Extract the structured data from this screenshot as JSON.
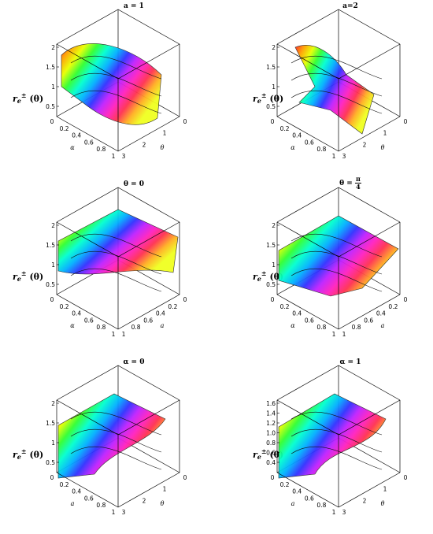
{
  "panels": [
    {
      "title": "a = 1",
      "zlabel": "r",
      "zticks": [
        "2",
        "1.5",
        "1",
        "0.5"
      ],
      "xticks": [
        "0",
        "0.2",
        "0.4",
        "0.6",
        "0.8",
        "1"
      ],
      "xname": "α",
      "yticks": [
        "0",
        "1",
        "2",
        "3"
      ],
      "yname": "θ"
    },
    {
      "title": "a=2",
      "zlabel": "r",
      "zticks": [
        "2",
        "1.5",
        "1",
        "0.5"
      ],
      "xticks": [
        "0",
        "0.2",
        "0.4",
        "0.6",
        "0.8",
        "1"
      ],
      "xname": "α",
      "yticks": [
        "0",
        "1",
        "2",
        "3"
      ],
      "yname": "θ"
    },
    {
      "title": "θ = 0",
      "zlabel": "r",
      "zticks": [
        "2",
        "1.5",
        "1",
        "0.5"
      ],
      "xticks": [
        "0",
        "0.2",
        "0.4",
        "0.6",
        "0.8",
        "1"
      ],
      "xname": "α",
      "yticks": [
        "0",
        "0.2",
        "0.4",
        "0.6",
        "0.8",
        "1"
      ],
      "yname": "a"
    },
    {
      "title_prefix": "θ =",
      "title_num": "π",
      "title_den": "4",
      "zlabel": "r",
      "zticks": [
        "2",
        "1.5",
        "1",
        "0.5"
      ],
      "xticks": [
        "0",
        "0.2",
        "0.4",
        "0.6",
        "0.8",
        "1"
      ],
      "xname": "α",
      "yticks": [
        "0",
        "0.2",
        "0.4",
        "0.6",
        "0.8",
        "1"
      ],
      "yname": "a"
    },
    {
      "title": "α = 0",
      "zlabel": "r",
      "zticks": [
        "2",
        "1.5",
        "1",
        "0.5"
      ],
      "xticks": [
        "0",
        "0.2",
        "0.4",
        "0.6",
        "0.8",
        "1"
      ],
      "xname": "a",
      "yticks": [
        "0",
        "1",
        "2",
        "3"
      ],
      "yname": "θ"
    },
    {
      "title": "α = 1",
      "zlabel": "r",
      "zticks": [
        "1.6",
        "1.4",
        "1.2",
        "1.0",
        "0.8",
        "0.6",
        "0.4"
      ],
      "xticks": [
        "0",
        "0.2",
        "0.4",
        "0.6",
        "0.8",
        "1"
      ],
      "xname": "a",
      "yticks": [
        "0",
        "1",
        "2",
        "3"
      ],
      "yname": "θ"
    }
  ],
  "zlabel_sub": "e",
  "zlabel_sup": "±",
  "zlabel_arg": "(θ)"
}
